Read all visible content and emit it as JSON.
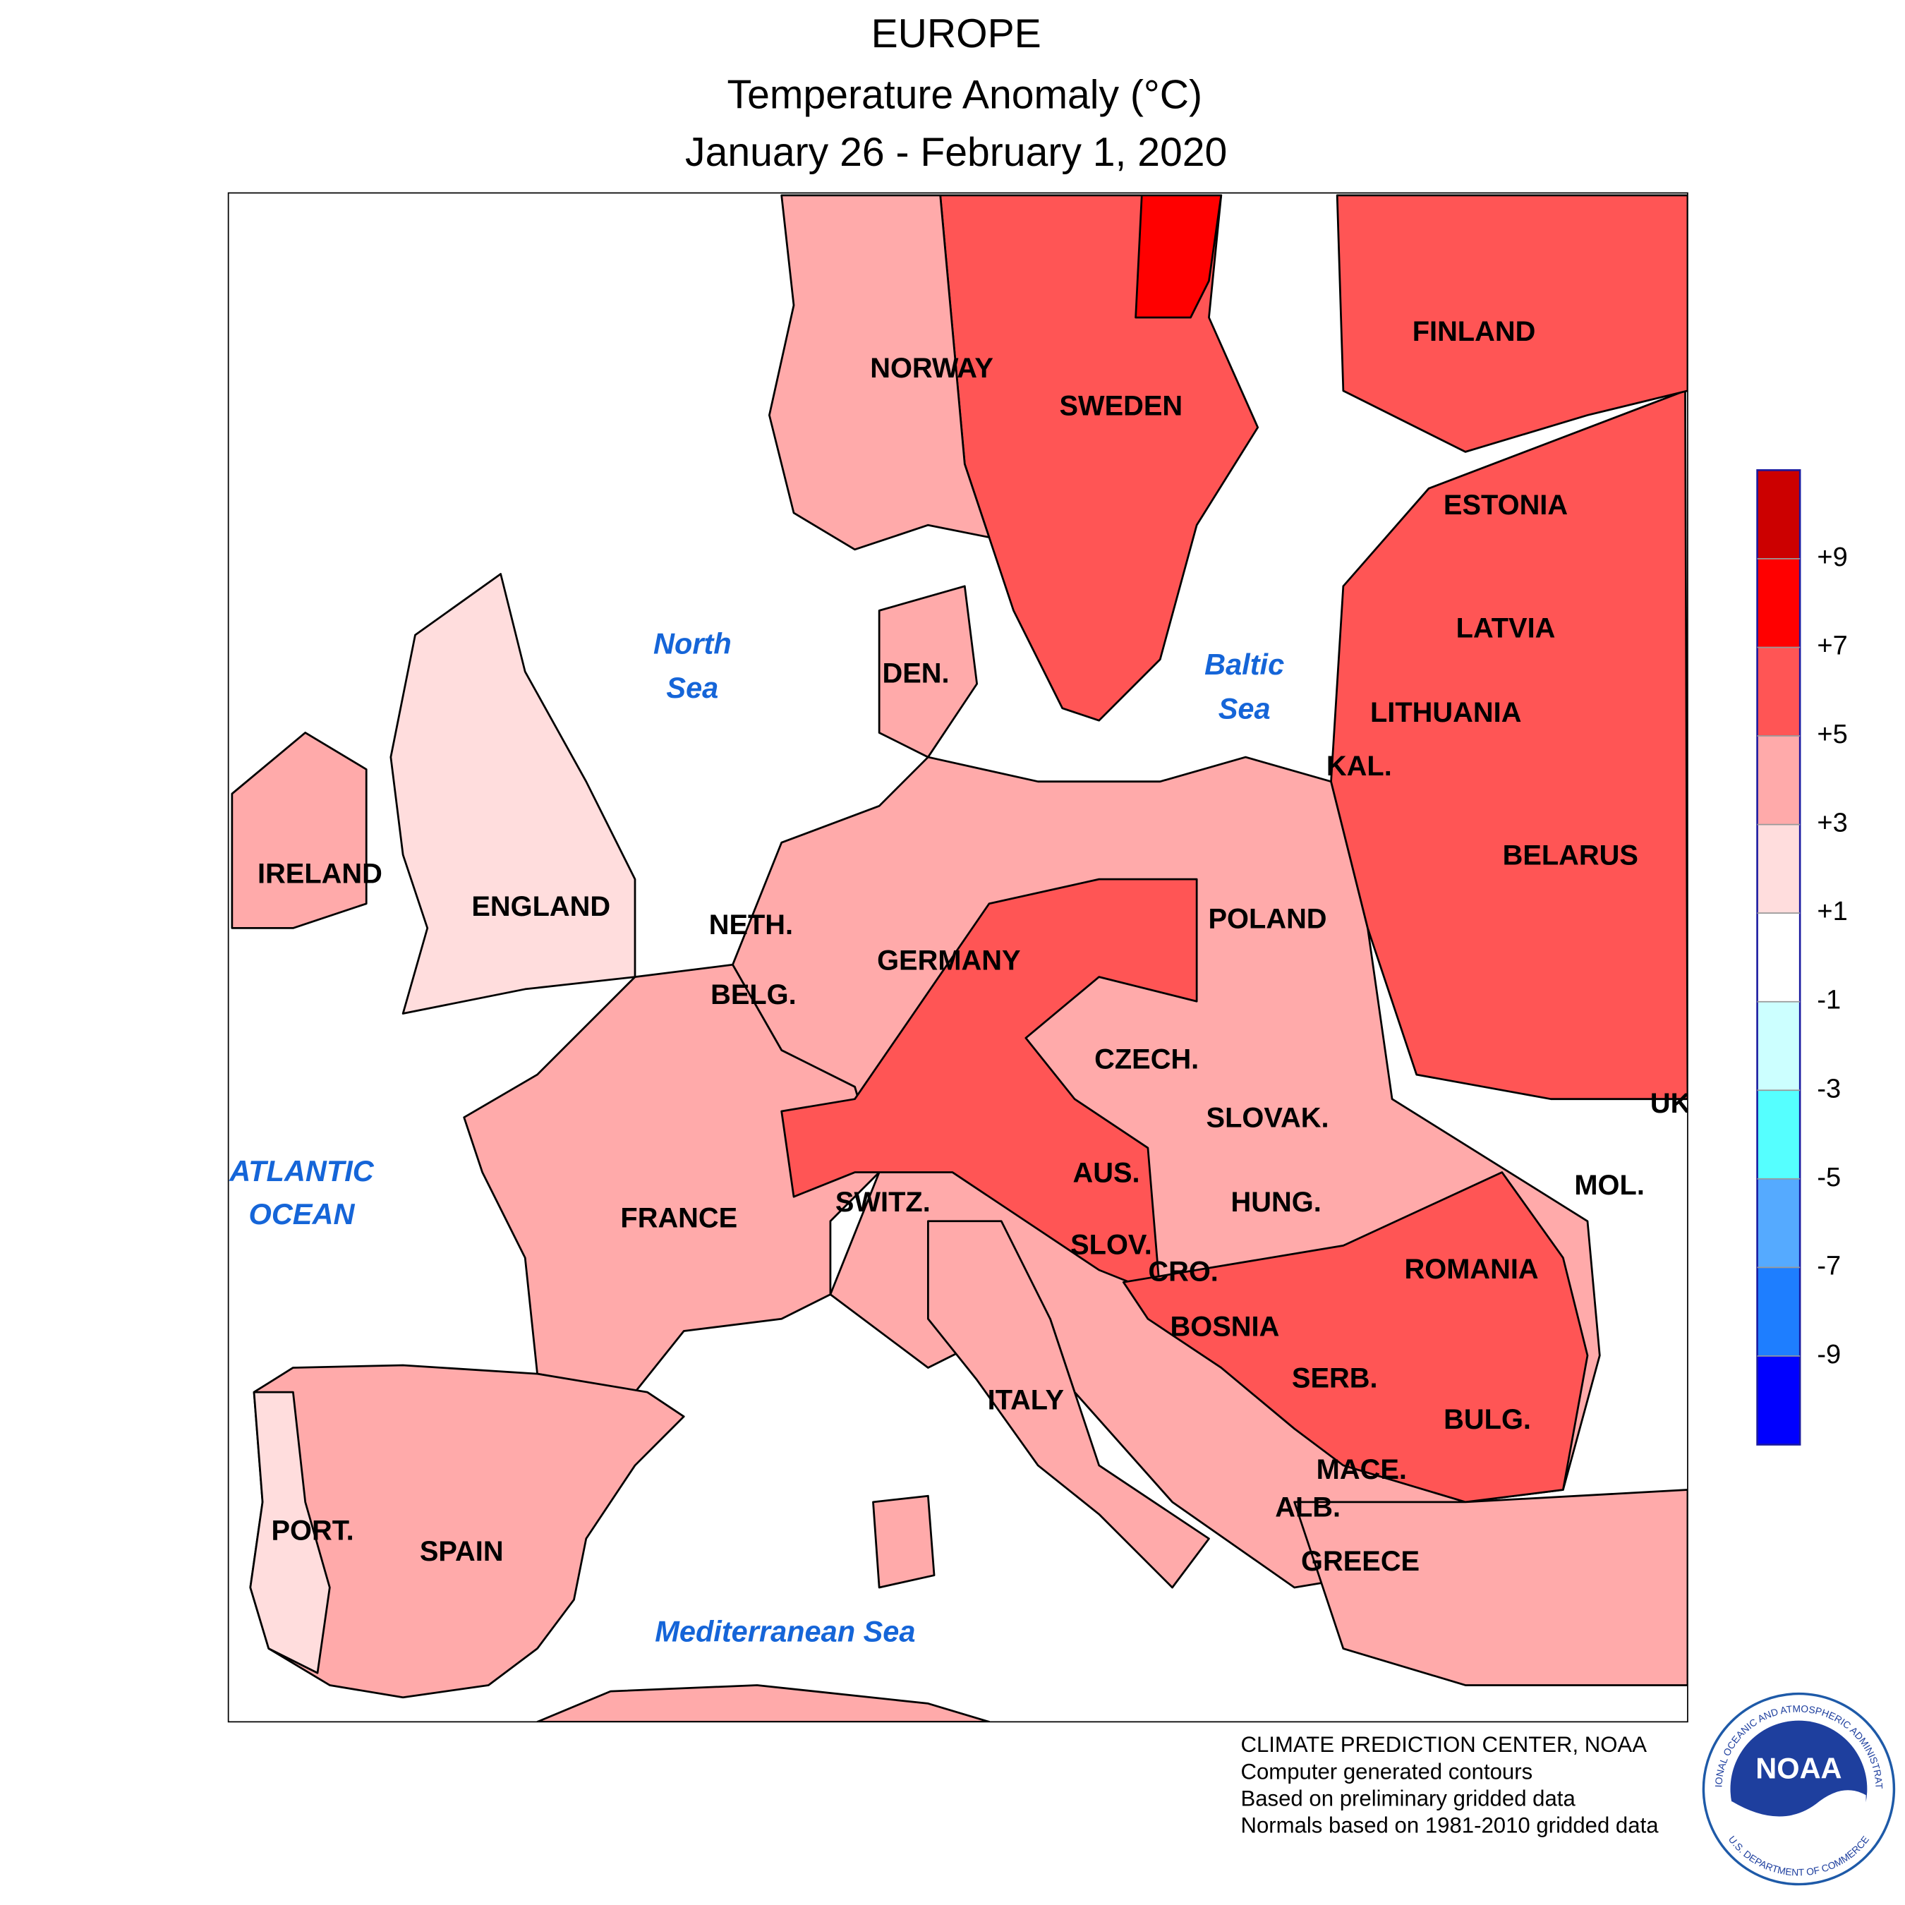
{
  "title": {
    "lines": [
      "EUROPE",
      "Temperature Anomaly (°C)",
      "January 26 - February 1, 2020"
    ]
  },
  "map": {
    "country_labels": [
      "NORWAY",
      "SWEDEN",
      "FINLAND",
      "ESTONIA",
      "LATVIA",
      "LITHUANIA",
      "KAL.",
      "BELARUS",
      "POLAND",
      "IRELAND",
      "ENGLAND",
      "NETH.",
      "GERMANY",
      "BELG.",
      "CZECH.",
      "SLOVAK.",
      "UK",
      "AUS.",
      "MOL.",
      "HUNG.",
      "SWITZ.",
      "FRANCE",
      "SLOV.",
      "CRO.",
      "ROMANIA",
      "BOSNIA",
      "SERB.",
      "ITALY",
      "BULG.",
      "MACE.",
      "ALB.",
      "PORT.",
      "SPAIN",
      "GREECE",
      "DEN."
    ],
    "sea_labels": [
      "North",
      "Sea",
      "Baltic",
      "Sea",
      "ATLANTIC",
      "OCEAN",
      "Mediterranean Sea"
    ]
  },
  "legend": {
    "range": [
      -11,
      11
    ],
    "colors": [
      "#0000ff",
      "#1e7eff",
      "#55aaff",
      "#55ffff",
      "#ccffff",
      "#ffffff",
      "#ffdddd",
      "#ffaaaa",
      "#ff5555",
      "#ff0000",
      "#cc0000"
    ],
    "ticks": [
      {
        "value": 9,
        "label": "+9"
      },
      {
        "value": 7,
        "label": "+7"
      },
      {
        "value": 5,
        "label": "+5"
      },
      {
        "value": 3,
        "label": "+3"
      },
      {
        "value": 1,
        "label": "+1"
      },
      -1,
      -3,
      -5,
      -7,
      -9
    ]
  },
  "footer": {
    "lines": [
      "CLIMATE PREDICTION CENTER, NOAA",
      "Computer generated contours",
      "Based on preliminary gridded data",
      "Normals based on 1981-2010 gridded data"
    ]
  },
  "logo": {
    "text": "NOAA",
    "ring_top": "NATIONAL OCEANIC AND ATMOSPHERIC ADMINISTRATION",
    "ring_bottom": "U.S. DEPARTMENT OF COMMERCE"
  }
}
